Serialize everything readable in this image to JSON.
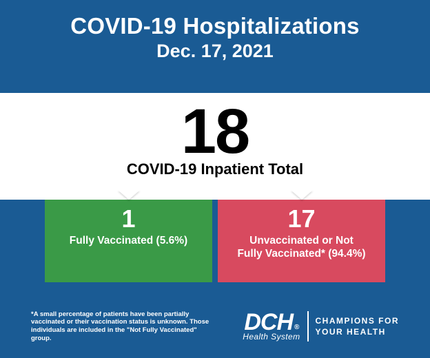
{
  "colors": {
    "background": "#1a5b94",
    "white_band": "#ffffff",
    "text_dark": "#000000",
    "text_light": "#ffffff"
  },
  "header": {
    "title": "COVID-19 Hospitalizations",
    "date": "Dec. 17, 2021",
    "title_fontsize": 33,
    "date_fontsize": 27
  },
  "total": {
    "number": "18",
    "label": "COVID-19 Inpatient Total",
    "number_fontsize": 92,
    "label_fontsize": 22
  },
  "panels": [
    {
      "id": "vaccinated",
      "count": "1",
      "label": "Fully Vaccinated (5.6%)",
      "bg_color": "#3a9a47"
    },
    {
      "id": "unvaccinated",
      "count": "17",
      "label": "Unvaccinated or Not\nFully Vaccinated* (94.4%)",
      "bg_color": "#d84a5f"
    }
  ],
  "footnote": "*A small percentage of patients have been partially vaccinated or their vaccination status is unknown. Those individuals are included in the \"Not Fully Vaccinated\" group.",
  "brand": {
    "logo_main": "DCH",
    "logo_sub": "Health System",
    "registered": "®",
    "tagline": "CHAMPIONS FOR\nYOUR HEALTH"
  }
}
